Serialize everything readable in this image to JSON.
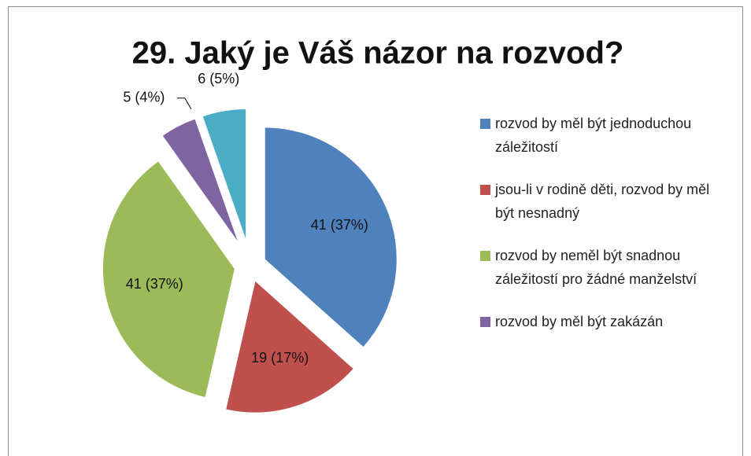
{
  "chart_data": {
    "type": "pie",
    "title": "29. Jaký je Váš názor na rozvod?",
    "categories": [
      "rozvod by měl být jednoduchou záležitostí",
      "jsou-li v rodině děti, rozvod by měl být nesnadný",
      "rozvod by neměl být snadnou záležitostí pro žádné manželství",
      "rozvod by měl být zakázán",
      null
    ],
    "values": [
      41,
      19,
      41,
      5,
      6
    ],
    "value_labels": [
      "41 (37%)",
      "19 (17%)",
      "41 (37%)",
      "5 (4%)",
      "6 (5%)"
    ],
    "colors": [
      "#4f81bd",
      "#c0504d",
      "#9bbb59",
      "#8064a2",
      "#4bacc6"
    ],
    "legend": "right"
  }
}
